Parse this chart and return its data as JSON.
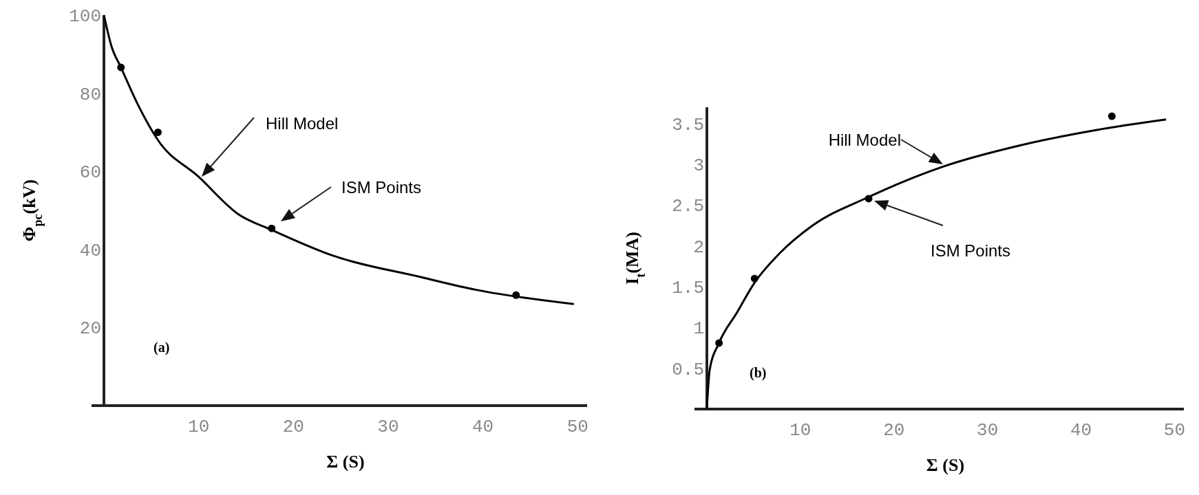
{
  "chart_data": [
    {
      "type": "line",
      "xlabel": "Σ (S)",
      "ylabel": "Φ$_{pc}$(kV)",
      "xlim": [
        0,
        51
      ],
      "ylim": [
        0,
        100
      ],
      "xticks": [
        10,
        20,
        30,
        40,
        50
      ],
      "yticks": [
        20,
        40,
        60,
        80,
        100
      ],
      "series": [
        {
          "color": "#000000",
          "x": [
            0,
            0.8,
            1.8,
            3.6,
            5.7,
            10,
            14.2,
            17.7,
            24.3,
            33.3,
            39.4,
            49.6
          ],
          "values": [
            100,
            92,
            86.6,
            77,
            68,
            58.6,
            49,
            45,
            38.3,
            33,
            29.6,
            26
          ]
        },
        {
          "type": "scatter",
          "color": "#000000",
          "marker": "circle",
          "x": [
            1.8,
            5.7,
            17.7,
            43.5
          ],
          "values": [
            86.6,
            70,
            45.4,
            28.3
          ]
        }
      ],
      "annotations": [
        "Hill Model",
        "ISM Points",
        "(a)"
      ]
    },
    {
      "type": "line",
      "xlabel": "Σ (S)",
      "ylabel": "I$_{t}$(MA)",
      "xlim": [
        0,
        51
      ],
      "ylim": [
        0,
        3.7
      ],
      "xticks": [
        10,
        20,
        30,
        40,
        50
      ],
      "yticks": [
        0.5,
        1,
        1.5,
        2,
        2.5,
        3,
        3.5
      ],
      "series": [
        {
          "color": "#000000",
          "x": [
            0,
            0.3,
            1.3,
            3.2,
            5.1,
            7.7,
            11.3,
            17.3,
            25.2,
            33.4,
            41.6,
            49.1
          ],
          "values": [
            0,
            0.48,
            0.81,
            1.18,
            1.55,
            1.9,
            2.25,
            2.6,
            2.97,
            3.23,
            3.42,
            3.55
          ]
        },
        {
          "type": "scatter",
          "color": "#000000",
          "marker": "circle",
          "x": [
            1.3,
            5.1,
            17.3,
            43.3
          ],
          "values": [
            0.81,
            1.6,
            2.58,
            3.59
          ]
        }
      ],
      "annotations": [
        "Hill Model",
        "ISM Points",
        "(b)"
      ]
    }
  ]
}
